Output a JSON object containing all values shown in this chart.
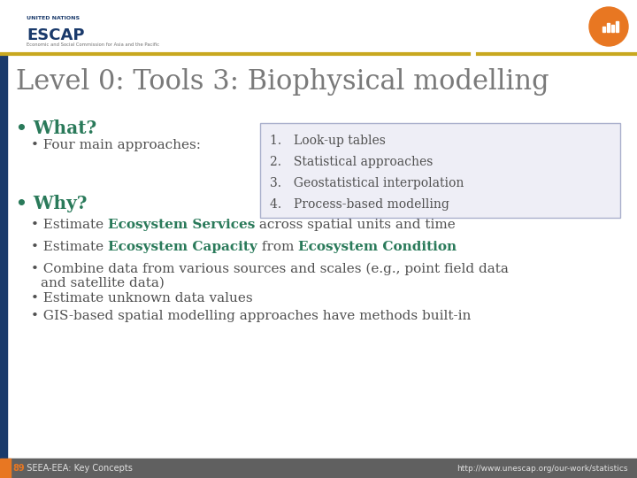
{
  "title": "Level 0: Tools 3: Biophysical modelling",
  "title_color": "#7a7a7a",
  "title_fontsize": 22,
  "bg_color": "#ffffff",
  "header_line_color1": "#c8a820",
  "header_line_color2": "#b89010",
  "sidebar_color": "#1a3a6b",
  "footer_bg": "#606060",
  "footer_left_num": "89",
  "footer_left_text": "  SEEA-EEA: Key Concepts",
  "footer_right": "http://www.unescap.org/our-work/statistics",
  "footer_color": "#e0e0e0",
  "footer_num_color": "#e87722",
  "what_label": "• What?",
  "what_color": "#2a7a5a",
  "what_sub": "• Four main approaches:",
  "why_label": "• Why?",
  "why_color": "#2a7a5a",
  "box_items": [
    "1. Look-up tables",
    "2. Statistical approaches",
    "3. Geostatistical interpolation",
    "4. Process-based modelling"
  ],
  "box_border_color": "#aab0cc",
  "box_bg_color": "#eeeef6",
  "text_color": "#505050",
  "green_color": "#2a7a5a",
  "escap_orange": "#e87722",
  "escap_blue": "#1a3a6b",
  "body_fontsize": 11,
  "sub_fontsize": 12
}
